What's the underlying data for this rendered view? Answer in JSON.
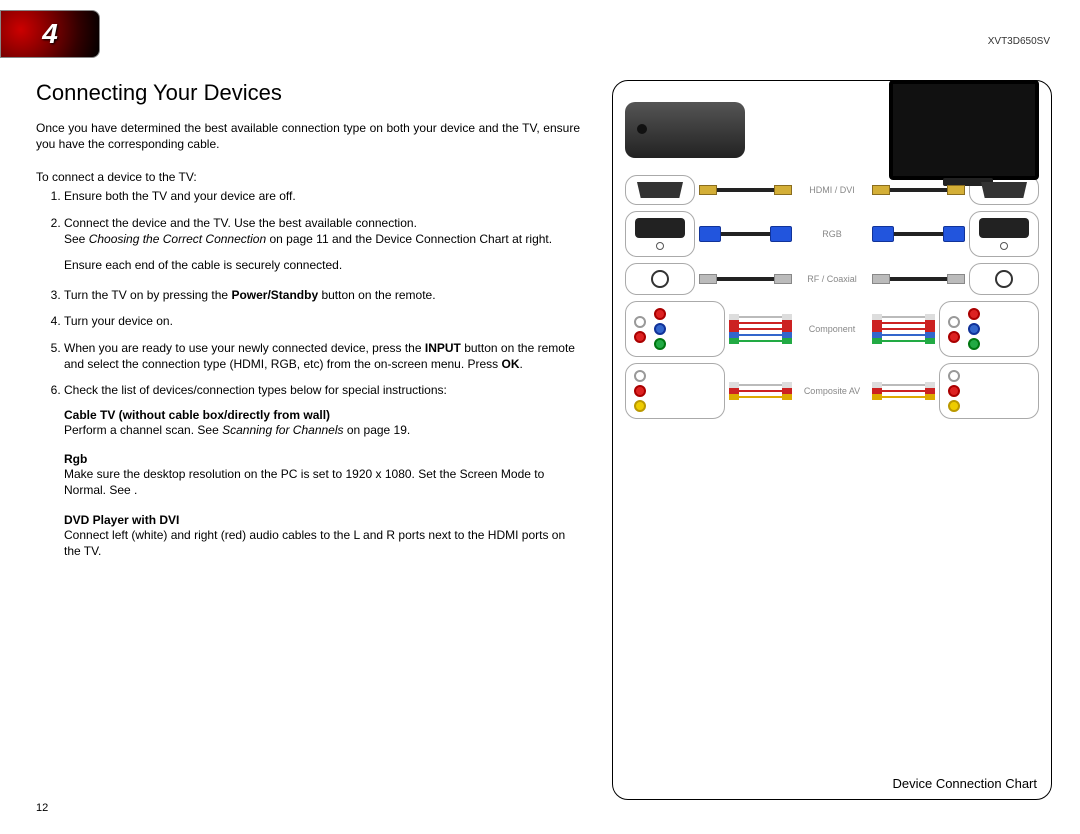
{
  "meta": {
    "model": "XVT3D650SV",
    "page_number": "12",
    "chapter_number": "4"
  },
  "section": {
    "title": "Connecting Your Devices",
    "intro": "Once you have determined the best available connection type on both your device and the TV, ensure you have the corresponding cable.",
    "steps_intro": "To connect a device to the TV:",
    "steps": {
      "s1": "Ensure both the TV and your device are off.",
      "s2a": "Connect the device and the TV. Use the best available connection.",
      "s2b_prefix": "See ",
      "s2b_ref": "Choosing the Correct Connection",
      "s2b_suffix": " on page 11 and the Device Connection Chart at right.",
      "s2_ensure": "Ensure each end of the cable is securely connected.",
      "s3_a": "Turn the TV on by pressing the ",
      "s3_bold": "Power/Standby",
      "s3_b": " button on the remote.",
      "s4": "Turn your device on.",
      "s5_a": "When you are ready to use your newly connected device, press the ",
      "s5_bold1": "INPUT",
      "s5_b": " button on the remote and select the connection type (HDMI, RGB, etc) from the on-screen menu. Press ",
      "s5_bold2": "OK",
      "s5_c": ".",
      "s6": "Check the list of devices/connection types below for special instructions:"
    },
    "special": {
      "cable_tv_head": "Cable TV (without cable box/directly from wall)",
      "cable_tv_a": "Perform a channel scan. See ",
      "cable_tv_ref": "Scanning for Channels",
      "cable_tv_b": " on page 19.",
      "rgb_head": "Rgb",
      "rgb_text": "Make sure the desktop resolution on the PC is set to 1920 x 1080. Set the Screen Mode to Normal. See .",
      "dvd_head": "DVD Player with DVI",
      "dvd_text": "Connect left (white) and right (red) audio cables to the L and R ports next to the HDMI ports on the TV."
    }
  },
  "chart": {
    "caption": "Device Connection Chart",
    "labels": {
      "hdmi": "HDMI / DVI",
      "rgb": "RGB",
      "rf": "RF / Coaxial",
      "component": "Component",
      "composite": "Composite AV"
    },
    "colors": {
      "hdmi_plug": "#d4af37",
      "vga_plug": "#2255dd",
      "rca_red": "#d22222",
      "rca_white": "#ffffff",
      "rca_yellow": "#eecc00",
      "rca_green": "#22aa44",
      "rca_blue": "#3366cc",
      "cable_black": "#222222",
      "panel_border": "#000000",
      "label_color": "#888888"
    }
  }
}
